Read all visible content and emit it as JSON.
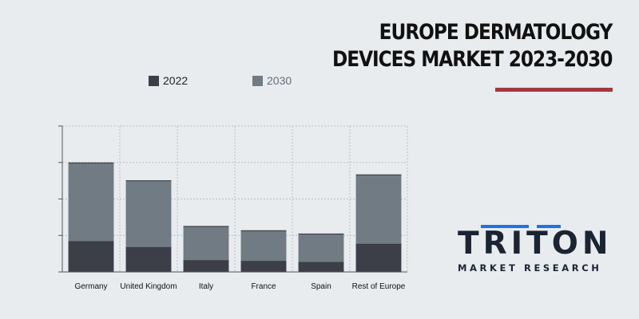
{
  "title_lines": [
    "EUROPE DERMATOLOGY",
    "DEVICES MARKET 2023-2030"
  ],
  "colors": {
    "background": "#e8ecef",
    "series_2022": "#3c3f48",
    "series_2030": "#717b84",
    "accent_underline": "#a33a3f",
    "logo_blue": "#1e73e6",
    "logo_dark": "#1b2433",
    "grid": "#b9bfc6",
    "axis": "#555555"
  },
  "logo": {
    "word": "TRITON",
    "subtitle": "MARKET RESEARCH"
  },
  "chart_data": {
    "type": "bar",
    "stacked": true,
    "categories": [
      "Germany",
      "United Kingdom",
      "Italy",
      "France",
      "Spain",
      "Rest of Europe"
    ],
    "series": [
      {
        "name": "2022",
        "values": [
          0.84,
          0.68,
          0.32,
          0.3,
          0.27,
          0.77
        ]
      },
      {
        "name": "2030",
        "values": [
          2.15,
          1.82,
          0.93,
          0.83,
          0.77,
          1.89
        ]
      }
    ],
    "ylim": [
      0,
      4
    ],
    "y_tick_count": 5,
    "y_tick_labels_shown": false,
    "xlabel": "",
    "ylabel": "",
    "grid": true,
    "legend_position": "top"
  }
}
